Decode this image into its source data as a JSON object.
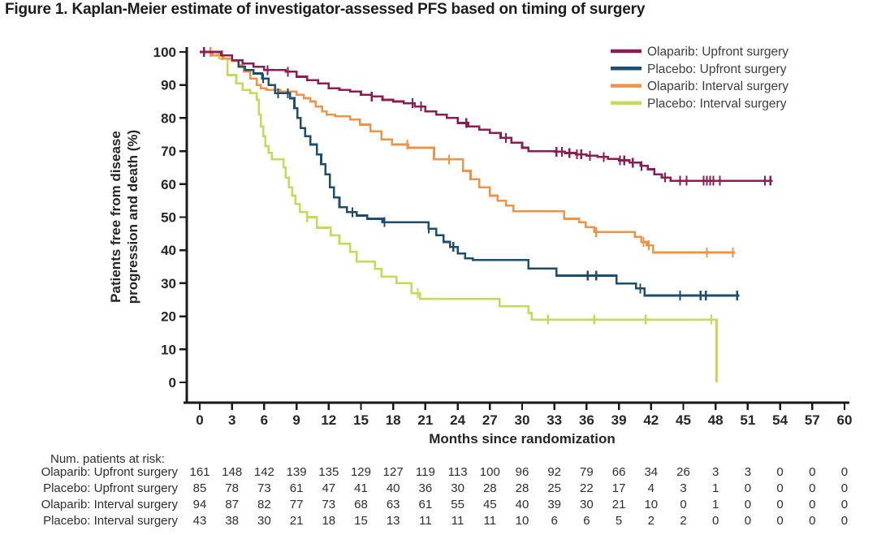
{
  "title": "Figure 1. Kaplan-Meier estimate of investigator-assessed PFS based on timing of surgery",
  "chart_data": {
    "type": "line",
    "variant": "kaplan_meier_step",
    "title": "Figure 1. Kaplan-Meier estimate of investigator-assessed PFS based on timing of surgery",
    "xlabel": "Months since randomization",
    "ylabel_lines": [
      "Patients free from disease",
      "progression and death (%)"
    ],
    "xlim": [
      0,
      60
    ],
    "ylim": [
      0,
      100
    ],
    "x_ticks": [
      0,
      3,
      6,
      9,
      12,
      15,
      18,
      21,
      24,
      27,
      30,
      33,
      36,
      39,
      42,
      45,
      48,
      51,
      54,
      57,
      60
    ],
    "y_ticks": [
      0,
      10,
      20,
      30,
      40,
      50,
      60,
      70,
      80,
      90,
      100
    ],
    "grid": false,
    "legend_position": "top-right",
    "axis_color": "#1a1a1a",
    "text_color": "#262626",
    "series": [
      {
        "name": "Olaparib: Upfront surgery",
        "slug": "olaparib-upfront",
        "color": "#8C1D52",
        "steps": [
          [
            0,
            100
          ],
          [
            2,
            99
          ],
          [
            3,
            97.5
          ],
          [
            4,
            96.5
          ],
          [
            5,
            95.5
          ],
          [
            6,
            94.5
          ],
          [
            8,
            94
          ],
          [
            9,
            92.5
          ],
          [
            10,
            91.5
          ],
          [
            11,
            90.5
          ],
          [
            12,
            89
          ],
          [
            13,
            88.5
          ],
          [
            14,
            88
          ],
          [
            15,
            87
          ],
          [
            16,
            86.5
          ],
          [
            17,
            85.5
          ],
          [
            18,
            85
          ],
          [
            19,
            84.5
          ],
          [
            20,
            83.5
          ],
          [
            21,
            82
          ],
          [
            22,
            81
          ],
          [
            23,
            80
          ],
          [
            24,
            78.5
          ],
          [
            25,
            77.5
          ],
          [
            26,
            76.5
          ],
          [
            27,
            75.5
          ],
          [
            28,
            74
          ],
          [
            29,
            72.5
          ],
          [
            30,
            71
          ],
          [
            30.6,
            70
          ],
          [
            33,
            69.8
          ],
          [
            34,
            69.4
          ],
          [
            35,
            69
          ],
          [
            36,
            68.6
          ],
          [
            37,
            68.2
          ],
          [
            38,
            67.6
          ],
          [
            39,
            67.2
          ],
          [
            40,
            66.5
          ],
          [
            41,
            65.5
          ],
          [
            41.7,
            64.5
          ],
          [
            42.3,
            63
          ],
          [
            43,
            62
          ],
          [
            43.8,
            61
          ],
          [
            53.3,
            61
          ]
        ],
        "censors": [
          0.4,
          6.3,
          8.2,
          16,
          19.8,
          20.6,
          24.8,
          28.5,
          33.2,
          33.7,
          34.4,
          35.1,
          35.5,
          36.3,
          37.6,
          39.1,
          39.5,
          40.3,
          41.1,
          43.3,
          44.7,
          45.3,
          46.9,
          47.2,
          47.5,
          47.8,
          48.4,
          52.6,
          53.1
        ]
      },
      {
        "name": "Placebo: Upfront surgery",
        "slug": "placebo-upfront",
        "color": "#1C4E6E",
        "steps": [
          [
            0,
            100
          ],
          [
            2,
            99
          ],
          [
            3,
            97.5
          ],
          [
            3.6,
            95.5
          ],
          [
            4.2,
            94.5
          ],
          [
            5,
            93.5
          ],
          [
            5.8,
            92
          ],
          [
            6.4,
            90
          ],
          [
            7,
            87.5
          ],
          [
            8.4,
            86
          ],
          [
            8.8,
            83
          ],
          [
            9.1,
            80
          ],
          [
            9.4,
            77
          ],
          [
            9.8,
            74.5
          ],
          [
            10.3,
            72
          ],
          [
            10.9,
            69
          ],
          [
            11.3,
            66
          ],
          [
            11.7,
            63
          ],
          [
            12.1,
            59
          ],
          [
            12.5,
            56
          ],
          [
            13,
            53
          ],
          [
            13.7,
            51.5
          ],
          [
            14.6,
            50.5
          ],
          [
            15.6,
            49.5
          ],
          [
            17,
            48.5
          ],
          [
            21.3,
            46.5
          ],
          [
            22,
            44.5
          ],
          [
            22.7,
            42.5
          ],
          [
            23.3,
            41
          ],
          [
            24,
            39
          ],
          [
            24.7,
            37.5
          ],
          [
            25.4,
            37
          ],
          [
            30.6,
            34.5
          ],
          [
            33.2,
            32.3
          ],
          [
            38.8,
            29.9
          ],
          [
            40.6,
            28.4
          ],
          [
            41.4,
            26.3
          ],
          [
            50.2,
            26.3
          ]
        ],
        "censors": [
          5.9,
          7.3,
          8.2,
          14.2,
          17.2,
          21.3,
          23.6,
          36.1,
          36.9,
          41,
          44.7,
          46.6,
          47.1,
          50
        ]
      },
      {
        "name": "Olaparib: Interval surgery",
        "slug": "olaparib-interval",
        "color": "#EE9449",
        "steps": [
          [
            0,
            100
          ],
          [
            1.2,
            99
          ],
          [
            2.2,
            98
          ],
          [
            3,
            97.3
          ],
          [
            3.6,
            96
          ],
          [
            4.1,
            94
          ],
          [
            4.7,
            92
          ],
          [
            5.3,
            90
          ],
          [
            5.7,
            89
          ],
          [
            6.2,
            88.5
          ],
          [
            7.5,
            88
          ],
          [
            9,
            87
          ],
          [
            9.7,
            86
          ],
          [
            10.3,
            85
          ],
          [
            10.8,
            83.5
          ],
          [
            11.4,
            82
          ],
          [
            11.8,
            81
          ],
          [
            12.6,
            80.5
          ],
          [
            14,
            79.5
          ],
          [
            14.9,
            78
          ],
          [
            15.9,
            76
          ],
          [
            16.9,
            73.5
          ],
          [
            17.9,
            72
          ],
          [
            19.4,
            71
          ],
          [
            21.8,
            67.5
          ],
          [
            24.5,
            64
          ],
          [
            25.2,
            61.5
          ],
          [
            26,
            59
          ],
          [
            27,
            56.5
          ],
          [
            27.7,
            55
          ],
          [
            28.5,
            53.5
          ],
          [
            29.2,
            51.8
          ],
          [
            33.9,
            49.5
          ],
          [
            35.3,
            48.5
          ],
          [
            35.9,
            47
          ],
          [
            36.7,
            45.5
          ],
          [
            40.5,
            44
          ],
          [
            41.1,
            42.5
          ],
          [
            41.6,
            41.5
          ],
          [
            42.2,
            39.3
          ],
          [
            49.8,
            39.3
          ]
        ],
        "censors": [
          1,
          2.1,
          19.3,
          23.2,
          36.9,
          41.3,
          41.8,
          47.2,
          49.6
        ]
      },
      {
        "name": "Placebo: Interval surgery",
        "slug": "placebo-interval",
        "color": "#C5DB57",
        "steps": [
          [
            0,
            100
          ],
          [
            1.8,
            98
          ],
          [
            2.6,
            93
          ],
          [
            3.4,
            90.5
          ],
          [
            4,
            88.5
          ],
          [
            4.7,
            87.5
          ],
          [
            5.3,
            85.5
          ],
          [
            5.5,
            81
          ],
          [
            5.7,
            77.5
          ],
          [
            5.9,
            74.5
          ],
          [
            6.1,
            71.5
          ],
          [
            6.4,
            69.5
          ],
          [
            6.7,
            67.5
          ],
          [
            7.8,
            65
          ],
          [
            8,
            62
          ],
          [
            8.3,
            59
          ],
          [
            8.6,
            56.5
          ],
          [
            8.9,
            54
          ],
          [
            9.3,
            51.5
          ],
          [
            10,
            50
          ],
          [
            10.9,
            46.8
          ],
          [
            12.2,
            44.5
          ],
          [
            13,
            42
          ],
          [
            14,
            39.5
          ],
          [
            14.6,
            36.5
          ],
          [
            16.3,
            34.3
          ],
          [
            16.9,
            32
          ],
          [
            18.3,
            30
          ],
          [
            19.7,
            27
          ],
          [
            20.5,
            25.2
          ],
          [
            27.9,
            23
          ],
          [
            30.6,
            21
          ],
          [
            30.9,
            19
          ],
          [
            48.1,
            19
          ],
          [
            48.1,
            0
          ]
        ],
        "censors": [
          10,
          20.3,
          32.4,
          36.7,
          41.5,
          47.6
        ]
      }
    ],
    "risk_table": {
      "header": "Num. patients at risk:",
      "months": [
        0,
        3,
        6,
        9,
        12,
        15,
        18,
        21,
        24,
        27,
        30,
        33,
        36,
        39,
        42,
        45,
        48,
        51,
        54,
        57,
        60
      ],
      "rows": [
        {
          "label": "Olaparib: Upfront surgery",
          "counts": [
            161,
            148,
            142,
            139,
            135,
            129,
            127,
            119,
            113,
            100,
            96,
            92,
            79,
            66,
            34,
            26,
            3,
            3,
            0,
            0,
            0
          ]
        },
        {
          "label": "Placebo: Upfront surgery",
          "counts": [
            85,
            78,
            73,
            61,
            47,
            41,
            40,
            36,
            30,
            28,
            28,
            25,
            22,
            17,
            4,
            3,
            1,
            0,
            0,
            0,
            0
          ]
        },
        {
          "label": "Olaparib: Interval surgery",
          "counts": [
            94,
            87,
            82,
            77,
            73,
            68,
            63,
            61,
            55,
            45,
            40,
            39,
            30,
            21,
            10,
            0,
            1,
            0,
            0,
            0,
            0
          ]
        },
        {
          "label": "Placebo: Interval surgery",
          "counts": [
            43,
            38,
            30,
            21,
            18,
            15,
            13,
            11,
            11,
            11,
            10,
            6,
            6,
            5,
            2,
            2,
            0,
            0,
            0,
            0,
            0
          ]
        }
      ]
    }
  }
}
